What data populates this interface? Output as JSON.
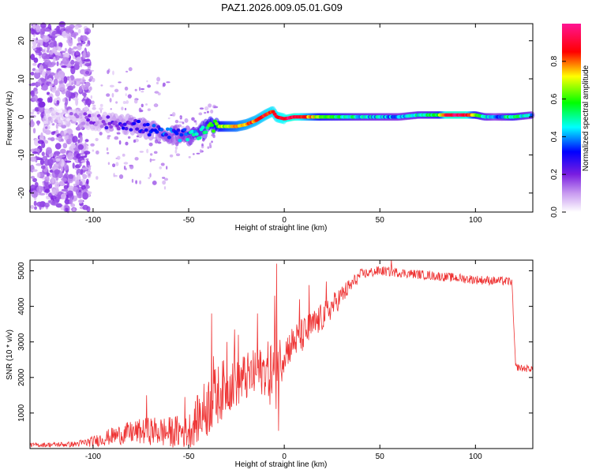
{
  "title": "PAZ1.2026.009.05.01.G09",
  "chart_data": [
    {
      "type": "heatmap",
      "xlabel": "Height of straight line (km)",
      "ylabel": "Frequency (Hz)",
      "xlim": [
        -133,
        130
      ],
      "ylim": [
        -25,
        24.5
      ],
      "xticks": [
        -100,
        -50,
        0,
        50,
        100
      ],
      "xtick_labels": [
        "-100",
        "-50",
        "0",
        "50",
        "100"
      ],
      "yticks": [
        -20,
        -10,
        0,
        10,
        20
      ],
      "ytick_labels": [
        "-20",
        "-10",
        "0",
        "10",
        "20"
      ],
      "ridge": {
        "x": [
          -130,
          -120,
          -110,
          -100,
          -90,
          -80,
          -70,
          -60,
          -50,
          -45,
          -40,
          -35,
          -30,
          -25,
          -20,
          -15,
          -10,
          -6,
          -4,
          0,
          5,
          10,
          20,
          30,
          50,
          60,
          70,
          80,
          90,
          100,
          105,
          115,
          120,
          130
        ],
        "y": [
          0,
          0,
          0,
          -1,
          -1.5,
          -2,
          -3.5,
          -4.5,
          -5,
          -4.5,
          -2.5,
          -2.5,
          -2.5,
          -2.5,
          -2,
          -1,
          0.5,
          1.5,
          0,
          -0.5,
          0,
          0,
          0,
          0,
          0,
          0,
          0.5,
          0.5,
          0.5,
          0.5,
          0,
          0,
          0,
          0.5
        ]
      },
      "ridge_amplitude": {
        "x": [
          -130,
          -110,
          -90,
          -70,
          -55,
          -40,
          -30,
          -20,
          -10,
          0,
          5,
          10,
          20,
          40,
          60,
          80,
          85,
          95,
          100,
          110,
          120,
          130
        ],
        "a": [
          0.03,
          0.1,
          0.2,
          0.3,
          0.35,
          0.55,
          0.7,
          0.8,
          0.85,
          0.9,
          0.95,
          0.85,
          0.6,
          0.45,
          0.4,
          0.55,
          0.95,
          0.95,
          0.6,
          0.35,
          0.55,
          0.4
        ]
      },
      "colorbar": {
        "label": "Normalized spectral amplitude",
        "ticks": [
          0.0,
          0.2,
          0.4,
          0.6,
          0.8
        ],
        "tick_labels": [
          "0.0",
          "0.2",
          "0.4",
          "0.6",
          "0.8"
        ],
        "colors": [
          "#ffffff",
          "#8a2be2",
          "#0000ff",
          "#00ffff",
          "#00ff00",
          "#ffff00",
          "#ff0000",
          "#ff1493"
        ]
      }
    },
    {
      "type": "line",
      "xlabel": "Height of straight line (km)",
      "ylabel": "SNR (10 * v/v)",
      "xlim": [
        -133,
        130
      ],
      "ylim": [
        0,
        5300
      ],
      "xticks": [
        -100,
        -50,
        0,
        50,
        100
      ],
      "xtick_labels": [
        "-100",
        "-50",
        "0",
        "50",
        "100"
      ],
      "yticks": [
        1000,
        2000,
        3000,
        4000,
        5000
      ],
      "ytick_labels": [
        "1000",
        "2000",
        "3000",
        "4000",
        "5000"
      ],
      "color": "#ee3333",
      "series": [
        {
          "name": "SNR",
          "trend": {
            "x": [
              -133,
              -110,
              -100,
              -90,
              -80,
              -70,
              -60,
              -50,
              -40,
              -30,
              -20,
              -10,
              -5,
              0,
              5,
              10,
              20,
              30,
              40,
              50,
              60,
              70,
              80,
              90,
              100,
              110,
              119,
              120,
              121,
              125,
              130
            ],
            "y": [
              100,
              120,
              200,
              350,
              450,
              500,
              450,
              500,
              1200,
              1800,
              2000,
              2200,
              2100,
              2700,
              3000,
              3200,
              3700,
              4300,
              4900,
              5000,
              4950,
              4900,
              4850,
              4800,
              4750,
              4720,
              4700,
              3500,
              2300,
              2250,
              2250
            ]
          },
          "noise": {
            "x": [
              -133,
              -110,
              -100,
              -90,
              -70,
              -50,
              -40,
              -30,
              -20,
              -10,
              -5,
              0,
              10,
              20,
              30,
              40,
              60,
              80,
              100,
              119,
              121,
              130
            ],
            "y": [
              60,
              80,
              150,
              250,
              400,
              500,
              900,
              800,
              700,
              700,
              1200,
              500,
              500,
              400,
              300,
              150,
              130,
              130,
              130,
              120,
              100,
              100
            ]
          },
          "spikes": [
            {
              "x": -72,
              "y": 1500
            },
            {
              "x": -52,
              "y": 1450
            },
            {
              "x": -38,
              "y": 3800
            },
            {
              "x": -37,
              "y": 2600
            },
            {
              "x": -30,
              "y": 3000
            },
            {
              "x": -26,
              "y": 3350
            },
            {
              "x": -24,
              "y": 3200
            },
            {
              "x": -14,
              "y": 3800
            },
            {
              "x": -5,
              "y": 4300
            },
            {
              "x": -4,
              "y": 5200
            },
            {
              "x": -3,
              "y": 500
            },
            {
              "x": 8,
              "y": 4200
            },
            {
              "x": 13,
              "y": 4600
            },
            {
              "x": 22,
              "y": 4700
            },
            {
              "x": 56,
              "y": 5300
            }
          ]
        }
      ]
    }
  ]
}
